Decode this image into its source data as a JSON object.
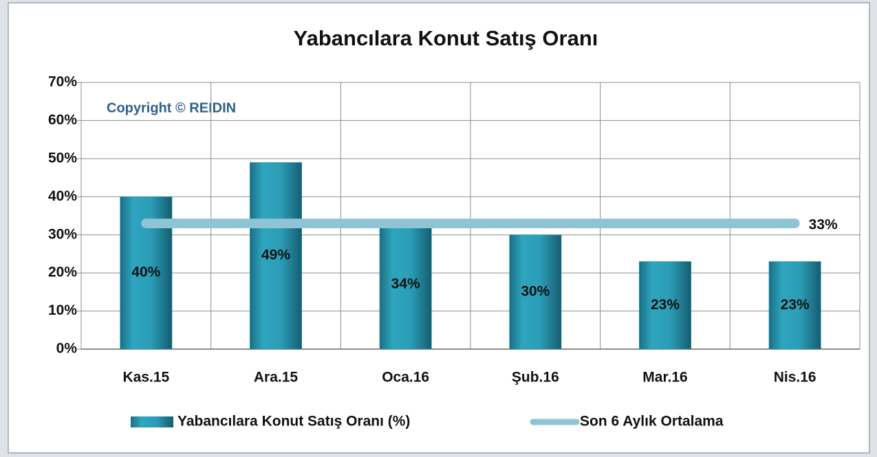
{
  "chart_data": {
    "type": "bar",
    "title": "Yabancılara Konut Satış Oranı",
    "annotation": "Copyright © REIDIN",
    "categories": [
      "Kas.15",
      "Ara.15",
      "Oca.16",
      "Şub.16",
      "Mar.16",
      "Nis.16"
    ],
    "series": [
      {
        "name": "Yabancılara Konut Satış Oranı (%)",
        "type": "bar",
        "color": "#2b9cb6",
        "values": [
          40,
          49,
          34,
          30,
          23,
          23
        ],
        "value_labels": [
          "40%",
          "49%",
          "34%",
          "30%",
          "23%",
          "23%"
        ]
      },
      {
        "name": "Son 6 Aylık Ortalama",
        "type": "line",
        "color": "#8fc4d4",
        "values": [
          33,
          33,
          33,
          33,
          33,
          33
        ],
        "value_labels": [
          null,
          null,
          null,
          null,
          null,
          "33%"
        ]
      }
    ],
    "ylim": [
      0,
      70
    ],
    "yticks": [
      {
        "value": 0,
        "label": "0%"
      },
      {
        "value": 10,
        "label": "10%"
      },
      {
        "value": 20,
        "label": "20%"
      },
      {
        "value": 30,
        "label": "30%"
      },
      {
        "value": 40,
        "label": "40%"
      },
      {
        "value": 50,
        "label": "50%"
      },
      {
        "value": 60,
        "label": "60%"
      },
      {
        "value": 70,
        "label": "70%"
      }
    ],
    "grid": true,
    "legend": "bottom"
  }
}
